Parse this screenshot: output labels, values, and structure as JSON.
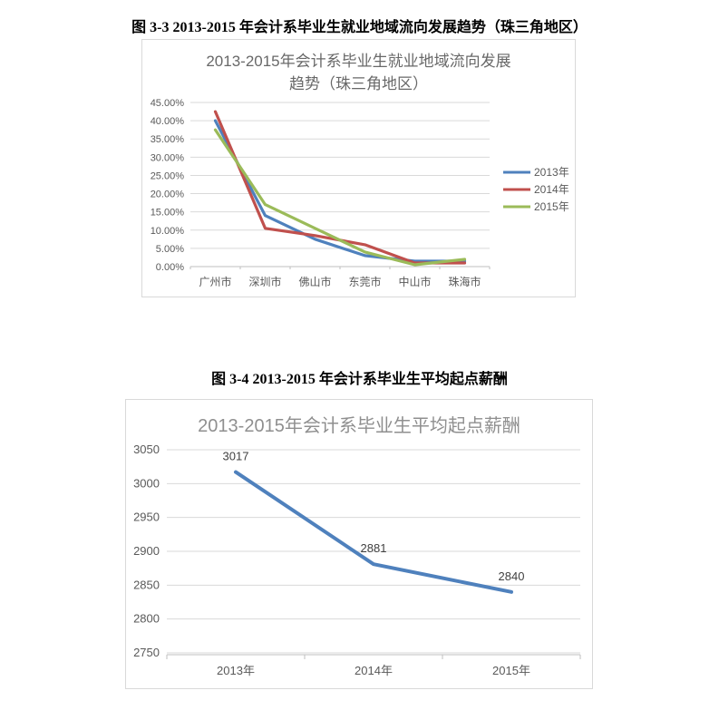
{
  "captions": {
    "fig1": "图 3-3 2013-2015 年会计系毕业生就业地域流向发展趋势（珠三角地区）",
    "fig2": "图 3-4 2013-2015 年会计系毕业生平均起点薪酬"
  },
  "chart_data": [
    {
      "type": "line",
      "title": "2013-2015年会计系毕业生就业地域流向发展趋势（珠三角地区）",
      "title_lines": [
        "2013-2015年会计系毕业生就业地域流向发展",
        "趋势（珠三角地区）"
      ],
      "categories": [
        "广州市",
        "深圳市",
        "佛山市",
        "东莞市",
        "中山市",
        "珠海市"
      ],
      "series": [
        {
          "name": "2013年",
          "color": "#4F81BD",
          "values": [
            40.0,
            14.0,
            7.5,
            3.0,
            1.5,
            1.5
          ]
        },
        {
          "name": "2014年",
          "color": "#C0504D",
          "values": [
            42.5,
            10.5,
            8.5,
            6.0,
            1.0,
            1.0
          ]
        },
        {
          "name": "2015年",
          "color": "#9BBB59",
          "values": [
            37.5,
            17.0,
            10.5,
            4.0,
            0.5,
            2.0
          ]
        }
      ],
      "unit": "%",
      "ylim": [
        0,
        45
      ],
      "ytick_step": 5,
      "ytick_labels": [
        "45.00%",
        "40.00%",
        "35.00%",
        "30.00%",
        "25.00%",
        "20.00%",
        "15.00%",
        "10.00%",
        "5.00%",
        "0.00%"
      ],
      "legend_position": "right",
      "grid": true
    },
    {
      "type": "line",
      "title": "2013-2015年会计系毕业生平均起点薪酬",
      "categories": [
        "2013年",
        "2014年",
        "2015年"
      ],
      "series": [
        {
          "name": "平均起点薪酬",
          "color": "#4F81BD",
          "values": [
            3017,
            2881,
            2840
          ]
        }
      ],
      "data_labels": [
        "3017",
        "2881",
        "2840"
      ],
      "ylim": [
        2750,
        3050
      ],
      "ytick_step": 50,
      "ytick_labels": [
        "3050",
        "3000",
        "2950",
        "2900",
        "2850",
        "2800",
        "2750"
      ],
      "legend_position": "none",
      "grid": true
    }
  ],
  "style": {
    "gridline_color": "#d9d9d9",
    "axis_color": "#bfbfbf",
    "axis_label_color": "#595959",
    "data_label_color": "#404040"
  }
}
